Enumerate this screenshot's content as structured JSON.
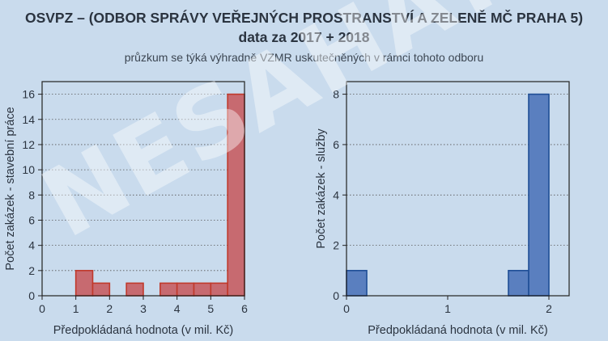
{
  "header": {
    "title_line1": "OSVPZ – (ODBOR SPRÁVY VEŘEJNÝCH PROSTRANSTVÍ A ZELENĚ MČ PRAHA 5)",
    "title_line2": "data za 2017 + 2018",
    "subtitle": "průzkum se týká výhradně VZMR uskutečněných v rámci tohoto odboru"
  },
  "watermark": "NESAHAT?",
  "colors": {
    "background": "#c9dbed",
    "left_bar_fill": "#c76a70",
    "left_bar_stroke": "#c0392b",
    "right_bar_fill": "#5a7fbf",
    "right_bar_stroke": "#1f4e96"
  },
  "chart_data": [
    {
      "type": "bar",
      "subtype": "histogram",
      "xlabel": "Předpokládaná hodnota (v mil. Kč)",
      "ylabel": "Počet zakázek - stavební práce",
      "xlim": [
        0,
        6
      ],
      "ylim": [
        0,
        17
      ],
      "xticks": [
        0,
        1,
        2,
        3,
        4,
        5,
        6
      ],
      "yticks": [
        0,
        2,
        4,
        6,
        8,
        10,
        12,
        14,
        16
      ],
      "grid": "horizontal dotted",
      "bins": [
        {
          "x0": 1.0,
          "x1": 1.5,
          "value": 2
        },
        {
          "x0": 1.5,
          "x1": 2.0,
          "value": 1
        },
        {
          "x0": 2.5,
          "x1": 3.0,
          "value": 1
        },
        {
          "x0": 3.5,
          "x1": 4.0,
          "value": 1
        },
        {
          "x0": 4.0,
          "x1": 4.5,
          "value": 1
        },
        {
          "x0": 4.5,
          "x1": 5.0,
          "value": 1
        },
        {
          "x0": 5.0,
          "x1": 5.5,
          "value": 1
        },
        {
          "x0": 5.5,
          "x1": 6.0,
          "value": 16
        }
      ]
    },
    {
      "type": "bar",
      "subtype": "histogram",
      "xlabel": "Předpokládaná hodnota (v mil. Kč)",
      "ylabel": "Počet zakázek - služby",
      "xlim": [
        0,
        2.2
      ],
      "ylim": [
        0,
        8.5
      ],
      "xticks": [
        0,
        1,
        2
      ],
      "yticks": [
        0,
        2,
        4,
        6,
        8
      ],
      "grid": "horizontal dotted",
      "bins": [
        {
          "x0": 0.0,
          "x1": 0.2,
          "value": 1
        },
        {
          "x0": 1.6,
          "x1": 1.8,
          "value": 1
        },
        {
          "x0": 1.8,
          "x1": 2.0,
          "value": 8
        }
      ]
    }
  ]
}
